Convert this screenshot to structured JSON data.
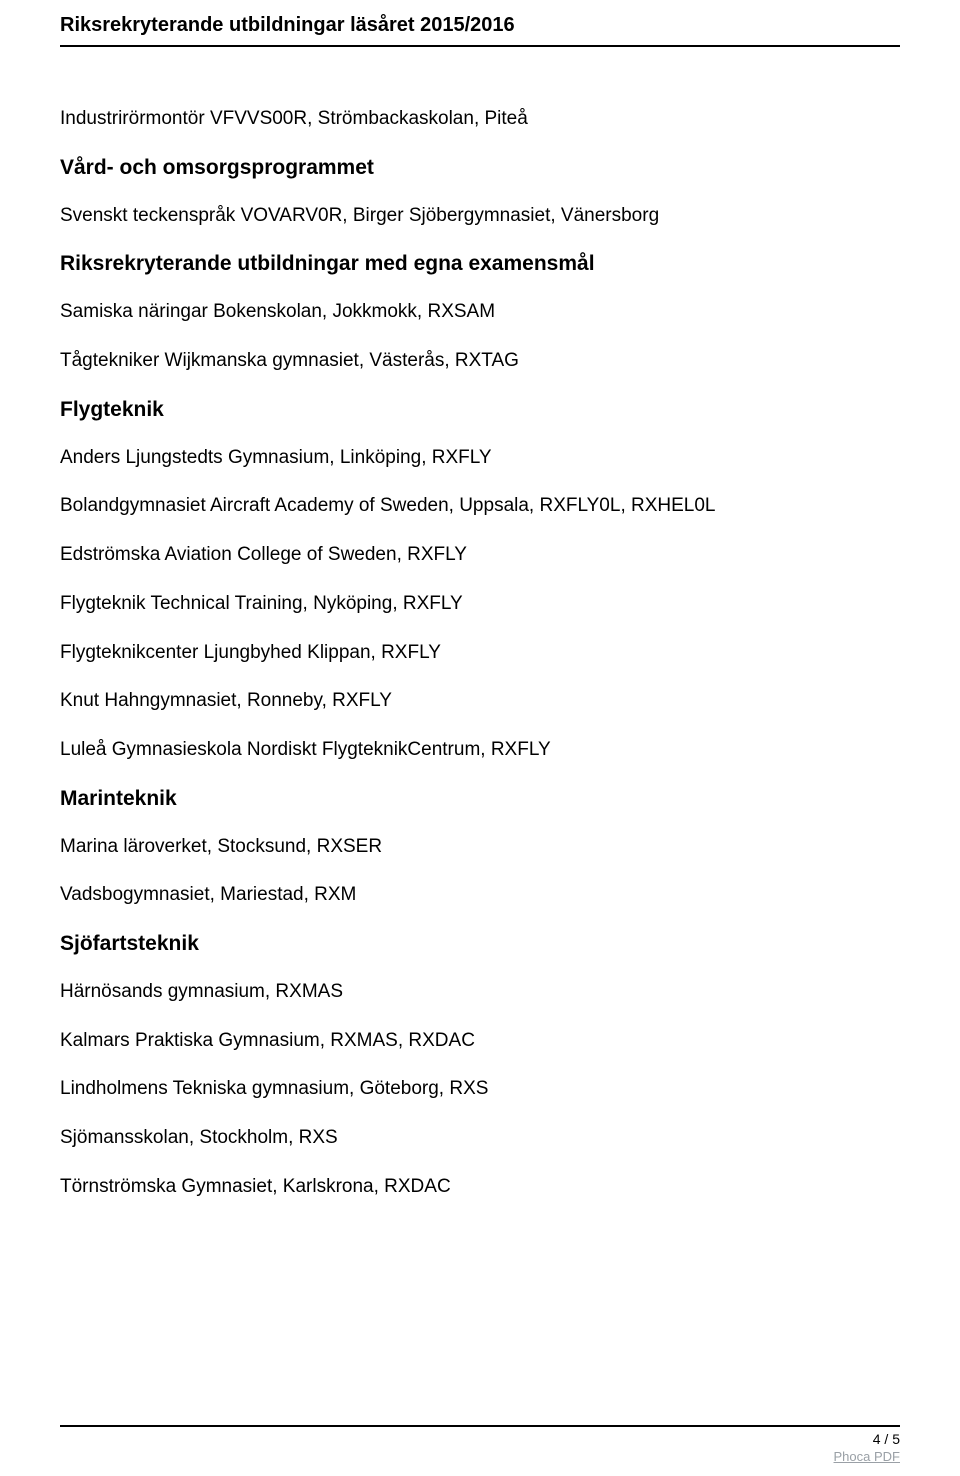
{
  "header": {
    "title": "Riksrekryterande utbildningar läsåret 2015/2016"
  },
  "content": {
    "lines": [
      {
        "type": "p",
        "text": "Industrirörmontör VFVVS00R, Strömbackaskolan, Piteå"
      },
      {
        "type": "h",
        "text": "Vård- och omsorgsprogrammet"
      },
      {
        "type": "p",
        "text": "Svenskt teckenspråk VOVARV0R, Birger Sjöbergymnasiet, Vänersborg"
      },
      {
        "type": "h",
        "text": "Riksrekryterande utbildningar med egna examensmål"
      },
      {
        "type": "p",
        "text": "Samiska näringar Bokenskolan, Jokkmokk, RXSAM"
      },
      {
        "type": "p",
        "text": "Tågtekniker Wijkmanska gymnasiet, Västerås, RXTAG"
      },
      {
        "type": "h",
        "text": "Flygteknik"
      },
      {
        "type": "p",
        "text": "Anders Ljungstedts Gymnasium, Linköping, RXFLY"
      },
      {
        "type": "p",
        "text": "Bolandgymnasiet Aircraft Academy of Sweden, Uppsala, RXFLY0L, RXHEL0L"
      },
      {
        "type": "p",
        "text": "Edströmska Aviation College of Sweden, RXFLY"
      },
      {
        "type": "p",
        "text": "Flygteknik Technical Training, Nyköping, RXFLY"
      },
      {
        "type": "p",
        "text": "Flygteknikcenter Ljungbyhed Klippan, RXFLY"
      },
      {
        "type": "p",
        "text": "Knut Hahngymnasiet, Ronneby, RXFLY"
      },
      {
        "type": "p",
        "text": "Luleå Gymnasieskola Nordiskt FlygteknikCentrum, RXFLY"
      },
      {
        "type": "h",
        "text": "Marinteknik"
      },
      {
        "type": "p",
        "text": "Marina läroverket, Stocksund, RXSER"
      },
      {
        "type": "p",
        "text": "Vadsbogymnasiet, Mariestad, RXM"
      },
      {
        "type": "h",
        "text": "Sjöfartsteknik"
      },
      {
        "type": "p",
        "text": "Härnösands gymnasium, RXMAS"
      },
      {
        "type": "p",
        "text": "Kalmars Praktiska Gymnasium, RXMAS, RXDAC"
      },
      {
        "type": "p",
        "text": "Lindholmens Tekniska gymnasium, Göteborg, RXS"
      },
      {
        "type": "p",
        "text": "Sjömansskolan, Stockholm, RXS"
      },
      {
        "type": "p",
        "text": "Törnströmska Gymnasiet, Karlskrona, RXDAC"
      }
    ]
  },
  "footer": {
    "page_indicator": "4 / 5",
    "link_text": "Phoca PDF"
  }
}
